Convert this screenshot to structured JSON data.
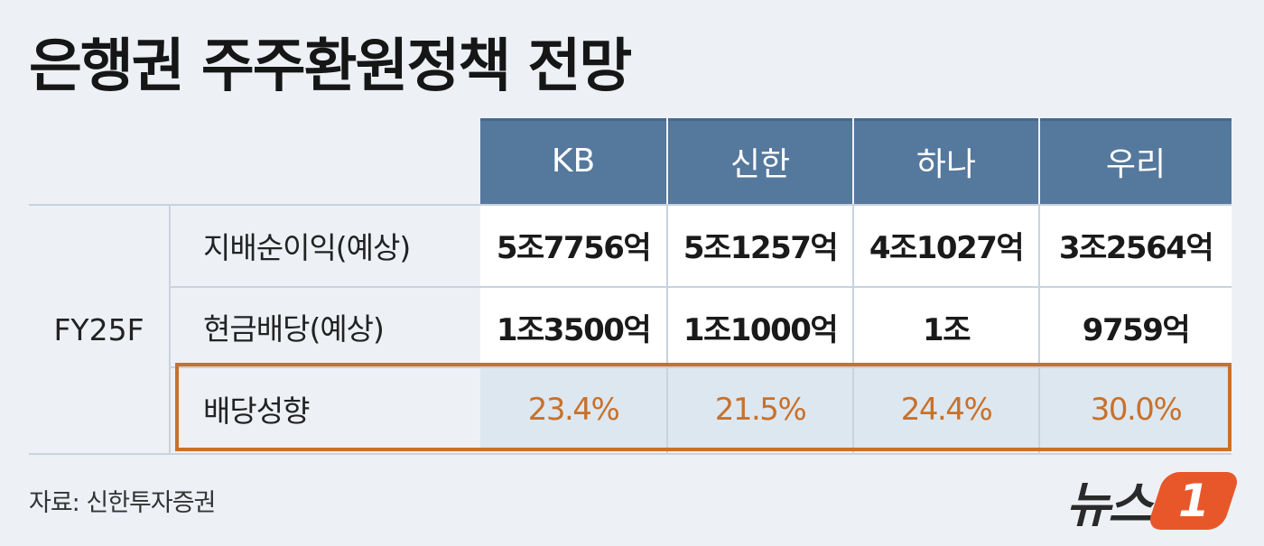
{
  "title": "은행권 주주환원정책 전망",
  "table": {
    "banks": [
      "KB",
      "신한",
      "하나",
      "우리"
    ],
    "period": "FY25F",
    "rows": [
      {
        "label": "지배순이익(예상)",
        "values": [
          "5조7756억",
          "5조1257억",
          "4조1027억",
          "3조2564억"
        ]
      },
      {
        "label": "현금배당(예상)",
        "values": [
          "1조3500억",
          "1조1000억",
          "1조",
          "9759억"
        ]
      },
      {
        "label": "배당성향",
        "values": [
          "23.4%",
          "21.5%",
          "24.4%",
          "30.0%"
        ]
      }
    ]
  },
  "source": "자료: 신한투자증권",
  "logo": {
    "text": "뉴스",
    "badge": "1"
  },
  "colors": {
    "header": "#55789d",
    "accent": "#c8712b",
    "background": "#edf1f6",
    "logo": "#e8572a"
  }
}
